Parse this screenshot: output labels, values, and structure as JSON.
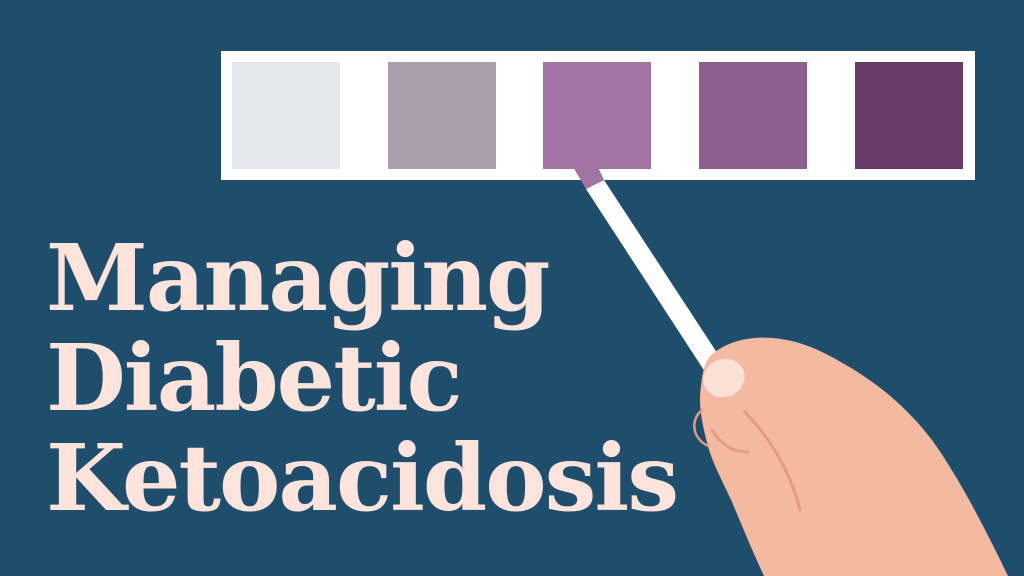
{
  "title": {
    "line1": "Managing",
    "line2": "Diabetic",
    "line3": "Ketoacidosis"
  },
  "colors": {
    "background": "#1f4d6c",
    "title_text": "#fce3dc",
    "chart_frame": "#ffffff",
    "swatches": [
      "#e4e7eb",
      "#aa9dab",
      "#a274a4",
      "#8d5f8f",
      "#6a3d68"
    ],
    "strip_tip": "#a274a4",
    "skin": "#f3b9a1",
    "skin_shadow": "#e39c83",
    "nail": "#fbe0d6"
  },
  "icons": {
    "test_strip": "ketone-test-strip-icon",
    "hand": "hand-icon"
  }
}
